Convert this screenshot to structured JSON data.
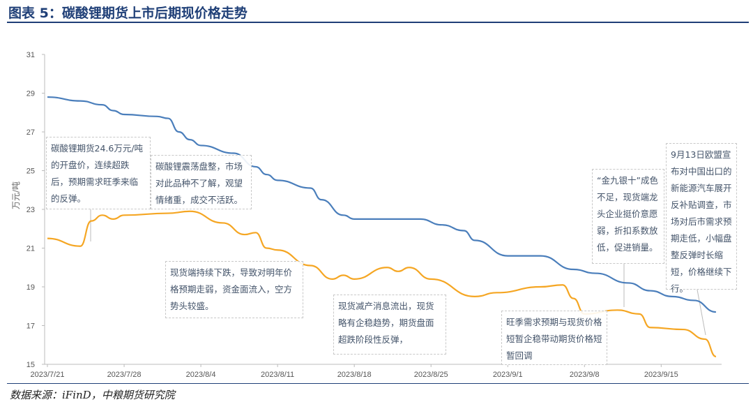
{
  "title": "图表 5：碳酸锂期货上市后期现价格走势",
  "source": "数据来源：iFinD，中粮期货研究院",
  "chart_data": {
    "type": "line",
    "ylabel": "万元/吨",
    "ylim": [
      15,
      31
    ],
    "yticks": [
      "15",
      "17",
      "19",
      "21",
      "23",
      "25",
      "27",
      "29",
      "31"
    ],
    "xticks": [
      "2023/7/21",
      "2023/7/28",
      "2023/8/4",
      "2023/8/11",
      "2023/8/18",
      "2023/8/25",
      "2023/9/1",
      "2023/9/8",
      "2023/9/15"
    ],
    "grid": false,
    "series": [
      {
        "color": "#4a7ebb",
        "points": [
          [
            "2023-07-21",
            28.8
          ],
          [
            "2023-07-24",
            28.6
          ],
          [
            "2023-07-26",
            28.4
          ],
          [
            "2023-07-27",
            28.1
          ],
          [
            "2023-07-28",
            27.9
          ],
          [
            "2023-07-31",
            27.8
          ],
          [
            "2023-08-01",
            27.7
          ],
          [
            "2023-08-02",
            27.0
          ],
          [
            "2023-08-03",
            26.6
          ],
          [
            "2023-08-04",
            26.3
          ],
          [
            "2023-08-07",
            25.9
          ],
          [
            "2023-08-09",
            25.2
          ],
          [
            "2023-08-10",
            24.8
          ],
          [
            "2023-08-11",
            24.5
          ],
          [
            "2023-08-14",
            24.1
          ],
          [
            "2023-08-15",
            23.5
          ],
          [
            "2023-08-17",
            22.7
          ],
          [
            "2023-08-18",
            22.5
          ],
          [
            "2023-08-24",
            22.5
          ],
          [
            "2023-08-26",
            22.2
          ],
          [
            "2023-08-28",
            21.9
          ],
          [
            "2023-08-29",
            21.4
          ],
          [
            "2023-09-01",
            20.6
          ],
          [
            "2023-09-04",
            20.6
          ],
          [
            "2023-09-07",
            19.9
          ],
          [
            "2023-09-09",
            19.7
          ],
          [
            "2023-09-12",
            19.2
          ],
          [
            "2023-09-14",
            18.8
          ],
          [
            "2023-09-16",
            18.5
          ],
          [
            "2023-09-18",
            18.3
          ],
          [
            "2023-09-20",
            17.7
          ]
        ]
      },
      {
        "color": "#f5a623",
        "points": [
          [
            "2023-07-21",
            21.5
          ],
          [
            "2023-07-24",
            21.1
          ],
          [
            "2023-07-25",
            22.4
          ],
          [
            "2023-07-26",
            22.7
          ],
          [
            "2023-07-27",
            22.5
          ],
          [
            "2023-07-28",
            22.7
          ],
          [
            "2023-08-01",
            22.8
          ],
          [
            "2023-08-03",
            22.9
          ],
          [
            "2023-08-06",
            22.3
          ],
          [
            "2023-08-08",
            21.7
          ],
          [
            "2023-08-09",
            21.8
          ],
          [
            "2023-08-10",
            21.0
          ],
          [
            "2023-08-11",
            20.9
          ],
          [
            "2023-08-14",
            20.1
          ],
          [
            "2023-08-16",
            19.4
          ],
          [
            "2023-08-17",
            19.6
          ],
          [
            "2023-08-18",
            19.4
          ],
          [
            "2023-08-21",
            20.0
          ],
          [
            "2023-08-22",
            19.8
          ],
          [
            "2023-08-23",
            20.0
          ],
          [
            "2023-08-25",
            19.4
          ],
          [
            "2023-08-29",
            18.5
          ],
          [
            "2023-08-31",
            18.7
          ],
          [
            "2023-09-04",
            19.0
          ],
          [
            "2023-09-06",
            19.1
          ],
          [
            "2023-09-07",
            18.4
          ],
          [
            "2023-09-08",
            17.6
          ],
          [
            "2023-09-11",
            17.8
          ],
          [
            "2023-09-13",
            17.6
          ],
          [
            "2023-09-14",
            16.9
          ],
          [
            "2023-09-17",
            16.8
          ],
          [
            "2023-09-19",
            16.3
          ],
          [
            "2023-09-20",
            15.4
          ]
        ]
      }
    ],
    "annotations": [
      "碳酸锂期货24.6万元/吨的开盘价，连续超跌后，预期需求旺季来临的反弹。",
      "碳酸锂震荡盘整，市场对此品种不了解，观望情绪重，成交不活跃。",
      "现货端持续下跌，导致对明年价格预期走弱，资金面流入，空方势头较盛。",
      "现货减产消息流出，现货略有企稳趋势，期货盘面超跌阶段性反弹，",
      "旺季需求预期与现货价格短暂企稳带动期货价格短暂回调",
      "“金九银十”成色不足，现货端龙头企业挺价意愿弱，折扣系数放低，促进销量。",
      "9月13日欧盟宣布对中国出口的新能源汽车展开反补贴调查，市场对后市需求预期走低，小幅盘整反弹时长缩短，价格继续下行。"
    ]
  }
}
